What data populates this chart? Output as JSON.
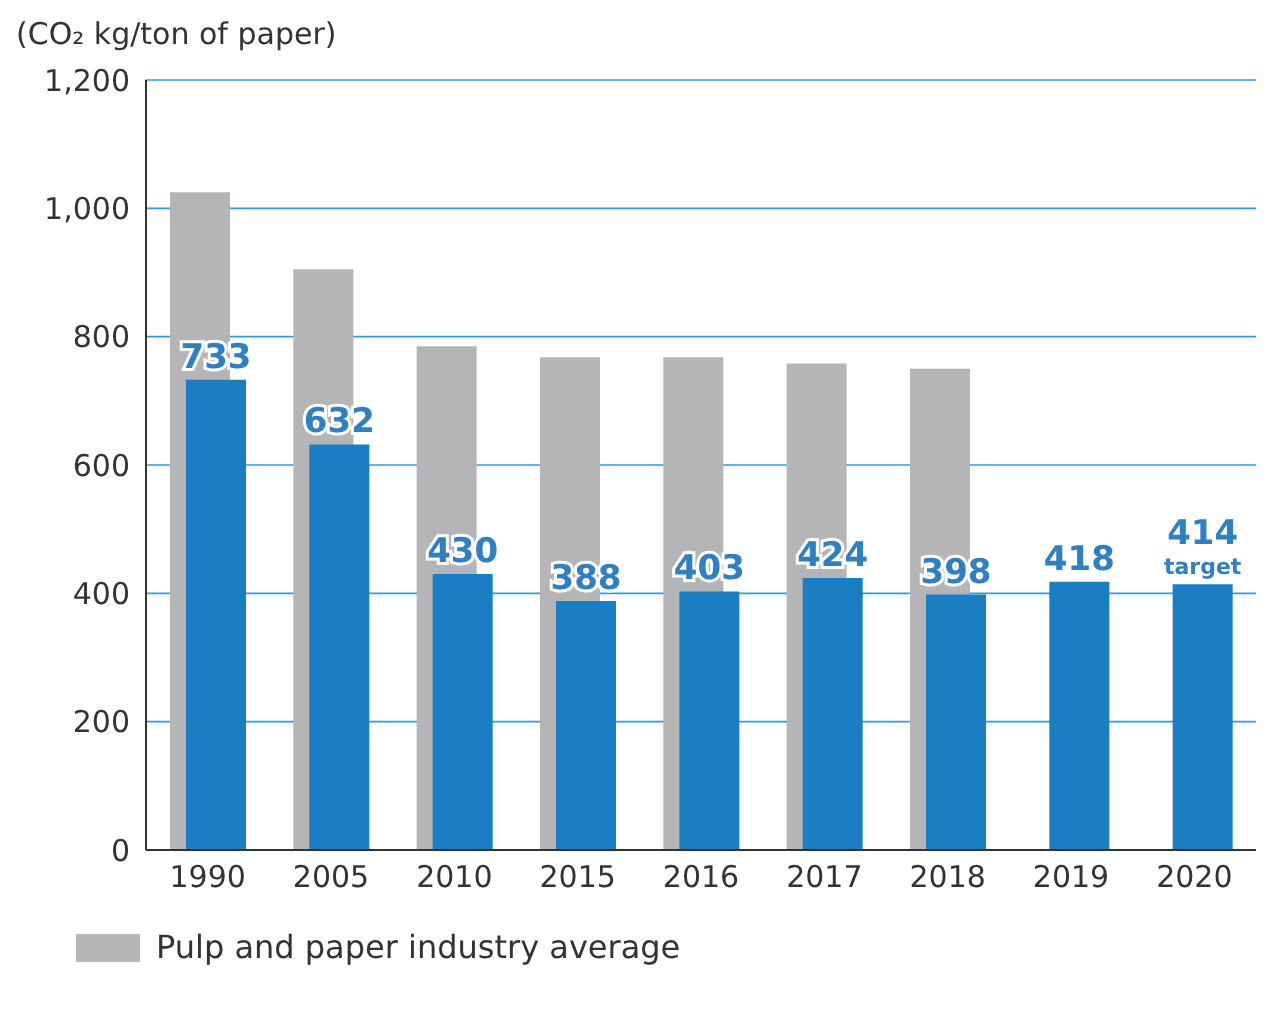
{
  "chart_data": {
    "type": "bar",
    "ylabel": "(CO₂ kg/ton of paper)",
    "categories": [
      "1990",
      "2005",
      "2010",
      "2015",
      "2016",
      "2017",
      "2018",
      "2019",
      "2020"
    ],
    "series": [
      {
        "name": "Pulp and paper industry average",
        "color": "#b5b5b7",
        "values": [
          1025,
          905,
          785,
          768,
          768,
          758,
          750,
          null,
          null
        ]
      },
      {
        "color": "#1b7dc2",
        "values": [
          733,
          632,
          430,
          388,
          403,
          424,
          398,
          418,
          414
        ],
        "value_labels": [
          "733",
          "632",
          "430",
          "388",
          "403",
          "424",
          "398",
          "418",
          "414"
        ]
      }
    ],
    "annotations": [
      {
        "text": "target",
        "x": "2020",
        "y": 414
      }
    ],
    "ylim": [
      0,
      1200
    ],
    "yticks": [
      0,
      200,
      400,
      600,
      800,
      {
        "value": 1000,
        "label": "1,000"
      },
      {
        "value": 1200,
        "label": "1,200"
      }
    ],
    "grid": "y",
    "legend": "bottom"
  }
}
